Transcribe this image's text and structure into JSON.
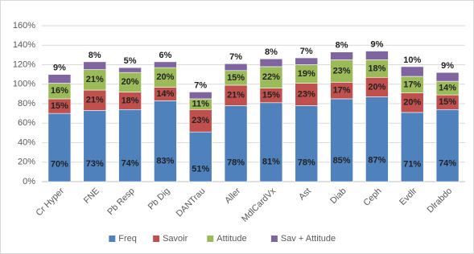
{
  "chart_data": {
    "type": "stacked_bar",
    "categories": [
      "Cr Hyper",
      "FNE",
      "Pb Resp",
      "Pb Dig",
      "DANTrau",
      "Aller",
      "MdlCardVx",
      "Ast",
      "Diab",
      "Ceph",
      "Evdlr",
      "Dlrabdo"
    ],
    "series": [
      {
        "name": "Freq",
        "color": "#4f81bd",
        "values": [
          70,
          73,
          74,
          83,
          51,
          78,
          81,
          78,
          85,
          87,
          71,
          74
        ],
        "value_labels": [
          "70%",
          "73%",
          "74%",
          "83%",
          "51%",
          "78%",
          "81%",
          "78%",
          "85%",
          "87%",
          "71%",
          "74%"
        ]
      },
      {
        "name": "Savoir",
        "color": "#c0504d",
        "values": [
          15,
          21,
          18,
          14,
          23,
          21,
          15,
          23,
          17,
          20,
          20,
          15
        ],
        "value_labels": [
          "15%",
          "21%",
          "18%",
          "14%",
          "23%",
          "21%",
          "15%",
          "23%",
          "17%",
          "20%",
          "20%",
          "15%"
        ]
      },
      {
        "name": "Attitude",
        "color": "#9bbb59",
        "values": [
          16,
          21,
          20,
          20,
          11,
          15,
          22,
          19,
          23,
          18,
          17,
          14
        ],
        "value_labels": [
          "16%",
          "21%",
          "20%",
          "20%",
          "11%",
          "15%",
          "22%",
          "19%",
          "23%",
          "18%",
          "17%",
          "14%"
        ]
      },
      {
        "name": "Sav + Attitude",
        "color": "#8064a2",
        "values": [
          9,
          8,
          5,
          6,
          7,
          7,
          8,
          7,
          8,
          9,
          10,
          9
        ],
        "value_labels": [
          "9%",
          "8%",
          "5%",
          "6%",
          "7%",
          "7%",
          "8%",
          "7%",
          "8%",
          "9%",
          "10%",
          "9%"
        ]
      }
    ],
    "ylim": [
      0,
      160
    ],
    "yticks": [
      {
        "value": 0,
        "label": "0%"
      },
      {
        "value": 20,
        "label": "20%"
      },
      {
        "value": 40,
        "label": "40%"
      },
      {
        "value": 60,
        "label": "60%"
      },
      {
        "value": 80,
        "label": "80%"
      },
      {
        "value": 100,
        "label": "100%"
      },
      {
        "value": 120,
        "label": "120%"
      },
      {
        "value": 140,
        "label": "140%"
      },
      {
        "value": 160,
        "label": "160%"
      }
    ],
    "grid": true,
    "legend": "bottom"
  }
}
